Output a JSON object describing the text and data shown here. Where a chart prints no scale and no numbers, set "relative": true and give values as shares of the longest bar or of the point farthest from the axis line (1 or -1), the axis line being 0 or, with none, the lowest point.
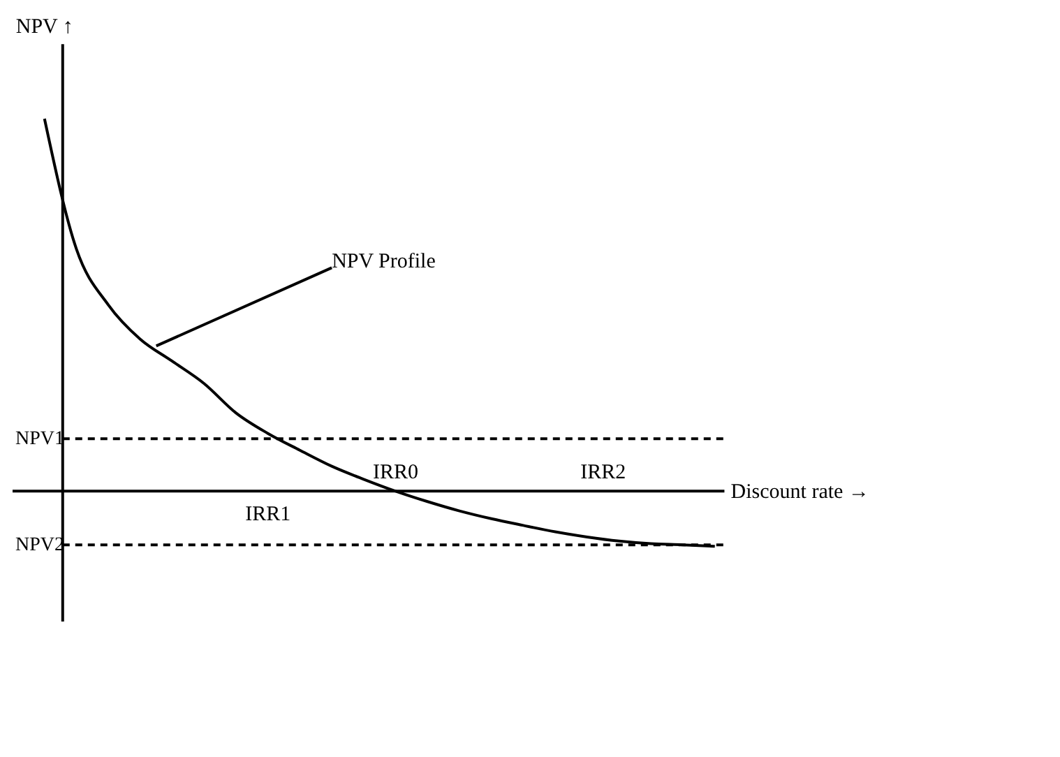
{
  "chart_data": {
    "type": "line",
    "relative": true,
    "xlabel": "Discount rate →",
    "ylabel": "NPV ↑",
    "categories": [
      null,
      null,
      null,
      null,
      null,
      null,
      null,
      null,
      null,
      null,
      null,
      null,
      null,
      null,
      null,
      null,
      null,
      null,
      null,
      null,
      null,
      null
    ],
    "series": [
      {
        "color": "#000000",
        "values": [
          1.0,
          0.65,
          0.5,
          0.408,
          0.349,
          0.289,
          0.21,
          0.155,
          0.11,
          0.067,
          0.032,
          0,
          -0.028,
          -0.053,
          -0.074,
          -0.092,
          -0.109,
          -0.123,
          -0.134,
          -0.141,
          -0.144,
          -0.148
        ]
      }
    ],
    "ref_lines": [
      {
        "axis": "y",
        "value": 0.141,
        "label": "NPV1",
        "color": "#000000",
        "line_style": "dashed"
      },
      {
        "axis": "y",
        "value": -0.144,
        "label": "NPV2",
        "color": "#000000",
        "line_style": "dashed"
      }
    ],
    "annotations": [
      "NPV Profile",
      "IRR0",
      "IRR1",
      "IRR2"
    ],
    "grid": false,
    "marker": "none",
    "line_style": "solid"
  }
}
